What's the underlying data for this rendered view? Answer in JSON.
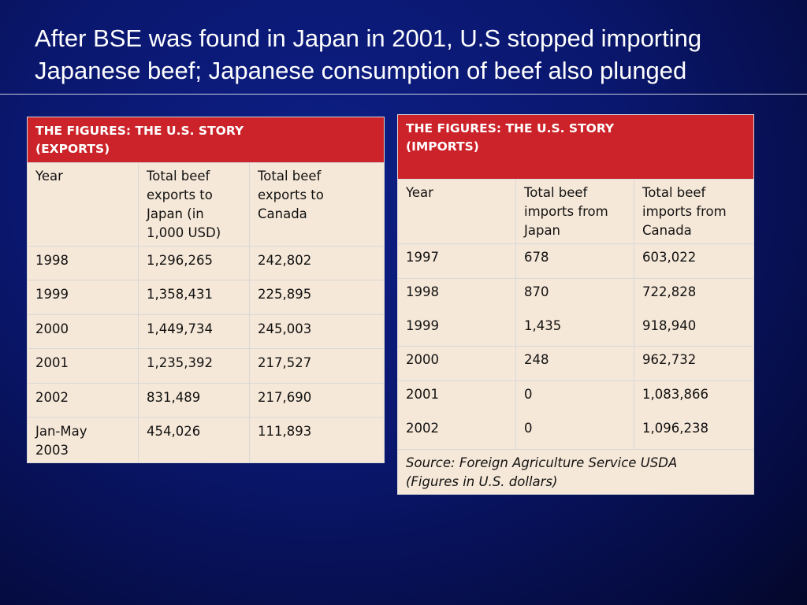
{
  "title": {
    "line1": "After BSE was found in Japan in 2001, U.S stopped importing",
    "line2": "Japanese beef; Japanese consumption of beef also plunged"
  },
  "exports": {
    "header_line1": "THE FIGURES: THE U.S. STORY",
    "header_line2": "(EXPORTS)",
    "columns": [
      [
        "Year"
      ],
      [
        "Total beef",
        "exports to",
        "Japan (in",
        "1,000 USD)"
      ],
      [
        "Total beef",
        "exports to",
        "Canada"
      ]
    ],
    "rows": [
      {
        "year": [
          "1998"
        ],
        "japan": "1,296,265",
        "canada": "242,802"
      },
      {
        "year": [
          "1999"
        ],
        "japan": "1,358,431",
        "canada": "225,895"
      },
      {
        "year": [
          "2000"
        ],
        "japan": "1,449,734",
        "canada": "245,003"
      },
      {
        "year": [
          "2001"
        ],
        "japan": "1,235,392",
        "canada": "217,527"
      },
      {
        "year": [
          "2002"
        ],
        "japan": "831,489",
        "canada": "217,690"
      },
      {
        "year": [
          "Jan-May",
          "2003"
        ],
        "japan": "454,026",
        "canada": "111,893"
      }
    ]
  },
  "imports": {
    "header_line1": "THE FIGURES: THE U.S. STORY",
    "header_line2": "(IMPORTS)",
    "columns": [
      [
        "Year"
      ],
      [
        "Total beef",
        "imports from",
        "Japan"
      ],
      [
        "Total beef",
        "imports from",
        "Canada"
      ]
    ],
    "rows": [
      {
        "year": "1997",
        "japan": "678",
        "canada": "603,022"
      },
      {
        "year": "1998",
        "japan": "870",
        "canada": "722,828"
      },
      {
        "year": "1999",
        "japan": "1,435",
        "canada": "918,940"
      },
      {
        "year": "2000",
        "japan": "248",
        "canada": "962,732"
      },
      {
        "year": "2001",
        "japan": "0",
        "canada": "1,083,866"
      },
      {
        "year": "2002",
        "japan": "0",
        "canada": "1,096,238"
      }
    ],
    "source_line1": "Source: Foreign Agriculture Service USDA",
    "source_line2": "(Figures in U.S. dollars)"
  }
}
